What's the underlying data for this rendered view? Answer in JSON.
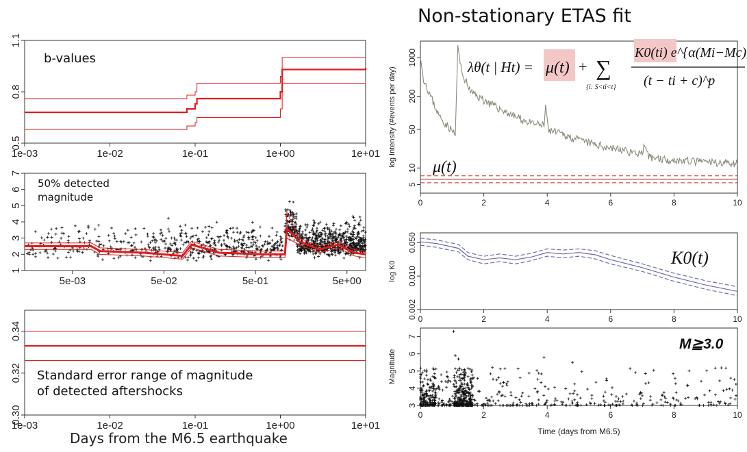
{
  "main_title": "Non-stationary ETAS fit",
  "left_xlabel": "Days from the M6.5 earthquake",
  "formula": {
    "lhs": "λθ(t | Ht) =",
    "mu": "μ(t)",
    "plus": "+",
    "sum": "∑",
    "sum_sub": "{i: S<ti<t}",
    "numerator": "K0(ti) e^{α(Mi−Mc)}",
    "denominator": "(t − ti + c)^p"
  },
  "colors": {
    "red": "#e31a1c",
    "olive": "#8a8a7a",
    "blue": "#6a6ab0",
    "black": "#111111",
    "highlight": "#f4c7c7"
  },
  "chart_data": [
    {
      "id": "b-values",
      "type": "line",
      "title": "b-values",
      "xscale": "log",
      "xlim": [
        0.001,
        10
      ],
      "ylim": [
        0.5,
        1.1
      ],
      "yticks": [
        "0.5",
        "0.8",
        "1.1"
      ],
      "xticks": [
        "1e-03",
        "1e-02",
        "1e-01",
        "1e+00",
        "1e+01"
      ],
      "series": [
        {
          "role": "estimate",
          "points": [
            [
              0.001,
              0.68
            ],
            [
              0.03,
              0.68
            ],
            [
              0.08,
              0.7
            ],
            [
              0.1,
              0.73
            ],
            [
              0.105,
              0.76
            ],
            [
              1.0,
              0.8
            ],
            [
              1.05,
              0.93
            ],
            [
              10,
              0.94
            ]
          ]
        },
        {
          "role": "upper",
          "points": [
            [
              0.001,
              0.76
            ],
            [
              0.03,
              0.76
            ],
            [
              0.08,
              0.78
            ],
            [
              0.1,
              0.8
            ],
            [
              0.105,
              0.85
            ],
            [
              1.0,
              0.89
            ],
            [
              1.05,
              1.0
            ],
            [
              10,
              1.0
            ]
          ]
        },
        {
          "role": "lower",
          "points": [
            [
              0.001,
              0.58
            ],
            [
              0.03,
              0.58
            ],
            [
              0.08,
              0.6
            ],
            [
              0.1,
              0.62
            ],
            [
              0.105,
              0.65
            ],
            [
              1.0,
              0.7
            ],
            [
              1.05,
              0.85
            ],
            [
              10,
              0.86
            ]
          ]
        }
      ]
    },
    {
      "id": "detected-magnitude",
      "type": "scatter",
      "title": "50% detected magnitude",
      "xscale": "log",
      "xlim": [
        0.0015,
        8
      ],
      "ylim": [
        1,
        7
      ],
      "yticks": [
        "1",
        "2",
        "3",
        "4",
        "5",
        "6",
        "7"
      ],
      "xticks": [
        {
          "label": "5e-03",
          "value": 0.005
        },
        {
          "label": "5e-02",
          "value": 0.05
        },
        {
          "label": "5e-01",
          "value": 0.5
        },
        {
          "label": "5e+00",
          "value": 5
        }
      ],
      "series": [
        {
          "role": "estimate",
          "points": [
            [
              0.0015,
              2.5
            ],
            [
              0.008,
              2.5
            ],
            [
              0.01,
              2.2
            ],
            [
              0.03,
              2.1
            ],
            [
              0.08,
              1.9
            ],
            [
              0.1,
              2.6
            ],
            [
              0.2,
              2.1
            ],
            [
              0.6,
              2.0
            ],
            [
              1.05,
              2.0
            ],
            [
              1.1,
              3.6
            ],
            [
              1.5,
              2.8
            ],
            [
              2.5,
              2.3
            ],
            [
              4,
              2.6
            ],
            [
              6,
              2.1
            ],
            [
              8,
              2.0
            ]
          ]
        },
        {
          "role": "upper",
          "points": [
            [
              0.0015,
              2.7
            ],
            [
              0.008,
              2.7
            ],
            [
              0.01,
              2.4
            ],
            [
              0.03,
              2.3
            ],
            [
              0.08,
              2.1
            ],
            [
              0.1,
              2.8
            ],
            [
              0.2,
              2.3
            ],
            [
              0.6,
              2.2
            ],
            [
              1.05,
              2.2
            ],
            [
              1.1,
              4.6
            ],
            [
              1.5,
              3.0
            ],
            [
              2.5,
              2.5
            ],
            [
              4,
              2.8
            ],
            [
              6,
              2.3
            ],
            [
              8,
              2.2
            ]
          ]
        },
        {
          "role": "lower",
          "points": [
            [
              0.0015,
              2.3
            ],
            [
              0.008,
              2.3
            ],
            [
              0.01,
              2.0
            ],
            [
              0.03,
              1.9
            ],
            [
              0.08,
              1.7
            ],
            [
              0.1,
              2.4
            ],
            [
              0.2,
              1.9
            ],
            [
              0.6,
              1.8
            ],
            [
              1.05,
              1.8
            ],
            [
              1.1,
              3.0
            ],
            [
              1.5,
              2.6
            ],
            [
              2.5,
              2.1
            ],
            [
              4,
              2.4
            ],
            [
              6,
              1.9
            ],
            [
              8,
              1.8
            ]
          ]
        }
      ]
    },
    {
      "id": "std-error",
      "type": "line",
      "title": "Standard error range of magnitude of detected aftershocks",
      "xscale": "log",
      "xlim": [
        0.001,
        10
      ],
      "ylim": [
        0.3,
        0.35
      ],
      "yticks": [
        "0.30",
        "0.32",
        "0.34"
      ],
      "xticks": [
        "1e-03",
        "1e-02",
        "1e-01",
        "1e+00",
        "1e+01"
      ],
      "series": [
        {
          "role": "estimate",
          "value": 0.333
        },
        {
          "role": "upper",
          "value": 0.34
        },
        {
          "role": "lower",
          "value": 0.326
        }
      ]
    },
    {
      "id": "intensity",
      "type": "line",
      "ylabel": "log Intensity (#events per day)",
      "yscale": "log",
      "xlim": [
        0,
        10
      ],
      "ylim": [
        3.5,
        2000
      ],
      "yticks": [
        {
          "label": "5",
          "value": 5
        },
        {
          "label": "10",
          "value": 10
        },
        {
          "label": "50",
          "value": 50
        },
        {
          "label": "200",
          "value": 200
        },
        {
          "label": "1000",
          "value": 1000
        }
      ],
      "xticks": [
        "0",
        "2",
        "4",
        "6",
        "8",
        "10"
      ],
      "annotation": "μ(t)",
      "series": [
        {
          "role": "total",
          "points": [
            [
              0,
              1000
            ],
            [
              0.1,
              400
            ],
            [
              0.3,
              200
            ],
            [
              0.6,
              80
            ],
            [
              1.1,
              38
            ],
            [
              1.18,
              1500
            ],
            [
              1.3,
              500
            ],
            [
              1.6,
              220
            ],
            [
              2,
              160
            ],
            [
              2.5,
              110
            ],
            [
              3,
              80
            ],
            [
              3.5,
              60
            ],
            [
              3.9,
              55
            ],
            [
              3.95,
              140
            ],
            [
              4.05,
              45
            ],
            [
              4.5,
              38
            ],
            [
              5,
              30
            ],
            [
              5.5,
              25
            ],
            [
              6,
              22
            ],
            [
              6.5,
              19
            ],
            [
              7,
              17
            ],
            [
              7.05,
              22
            ],
            [
              7.2,
              15
            ],
            [
              7.5,
              14
            ],
            [
              8,
              13
            ],
            [
              9,
              12
            ],
            [
              10,
              11.5
            ]
          ]
        },
        {
          "role": "mu",
          "value": 6.3
        },
        {
          "role": "mu_upper",
          "value": 7.2
        },
        {
          "role": "mu_lower",
          "value": 5.4
        }
      ]
    },
    {
      "id": "k0",
      "type": "line",
      "ylabel": "log K0",
      "yscale": "log",
      "xlim": [
        0,
        10
      ],
      "ylim": [
        0.002,
        0.08
      ],
      "yticks": [
        {
          "label": "0.002",
          "value": 0.002
        },
        {
          "label": "0.010",
          "value": 0.01
        },
        {
          "label": "0.050",
          "value": 0.05
        }
      ],
      "xticks": [
        "0",
        "2",
        "4",
        "6",
        "8",
        "10"
      ],
      "annotation": "K0(t)",
      "series": [
        {
          "role": "estimate",
          "points": [
            [
              0,
              0.052
            ],
            [
              0.5,
              0.048
            ],
            [
              1.2,
              0.038
            ],
            [
              1.5,
              0.026
            ],
            [
              2,
              0.022
            ],
            [
              2.5,
              0.024
            ],
            [
              3,
              0.022
            ],
            [
              3.5,
              0.025
            ],
            [
              4,
              0.031
            ],
            [
              4.5,
              0.029
            ],
            [
              5,
              0.031
            ],
            [
              5.5,
              0.028
            ],
            [
              6,
              0.022
            ],
            [
              7,
              0.015
            ],
            [
              8,
              0.0095
            ],
            [
              9,
              0.0065
            ],
            [
              10,
              0.0048
            ]
          ]
        },
        {
          "role": "upper",
          "points": [
            [
              0,
              0.062
            ],
            [
              0.5,
              0.057
            ],
            [
              1.2,
              0.046
            ],
            [
              1.5,
              0.031
            ],
            [
              2,
              0.026
            ],
            [
              2.5,
              0.029
            ],
            [
              3,
              0.026
            ],
            [
              3.5,
              0.03
            ],
            [
              4,
              0.037
            ],
            [
              4.5,
              0.035
            ],
            [
              5,
              0.037
            ],
            [
              5.5,
              0.034
            ],
            [
              6,
              0.027
            ],
            [
              7,
              0.018
            ],
            [
              8,
              0.0115
            ],
            [
              9,
              0.008
            ],
            [
              10,
              0.006
            ]
          ]
        },
        {
          "role": "lower",
          "points": [
            [
              0,
              0.044
            ],
            [
              0.5,
              0.04
            ],
            [
              1.2,
              0.032
            ],
            [
              1.5,
              0.022
            ],
            [
              2,
              0.018
            ],
            [
              2.5,
              0.02
            ],
            [
              3,
              0.018
            ],
            [
              3.5,
              0.021
            ],
            [
              4,
              0.026
            ],
            [
              4.5,
              0.024
            ],
            [
              5,
              0.026
            ],
            [
              5.5,
              0.023
            ],
            [
              6,
              0.018
            ],
            [
              7,
              0.0125
            ],
            [
              8,
              0.0078
            ],
            [
              9,
              0.0053
            ],
            [
              10,
              0.0039
            ]
          ]
        }
      ]
    },
    {
      "id": "magnitude",
      "type": "scatter",
      "ylabel": "Magnitude",
      "xlabel": "Time (days from M6.5)",
      "xlim": [
        0,
        10
      ],
      "ylim": [
        3,
        7.5
      ],
      "yticks": [
        "3",
        "4",
        "5",
        "6",
        "7"
      ],
      "xticks": [
        "0",
        "2",
        "4",
        "6",
        "8",
        "10"
      ],
      "annotation": "M≧3.0",
      "highlight_points": [
        [
          1.05,
          7.3
        ],
        [
          1.1,
          5.9
        ],
        [
          3.9,
          5.8
        ],
        [
          4.8,
          5.5
        ],
        [
          1.2,
          5.7
        ]
      ]
    }
  ]
}
